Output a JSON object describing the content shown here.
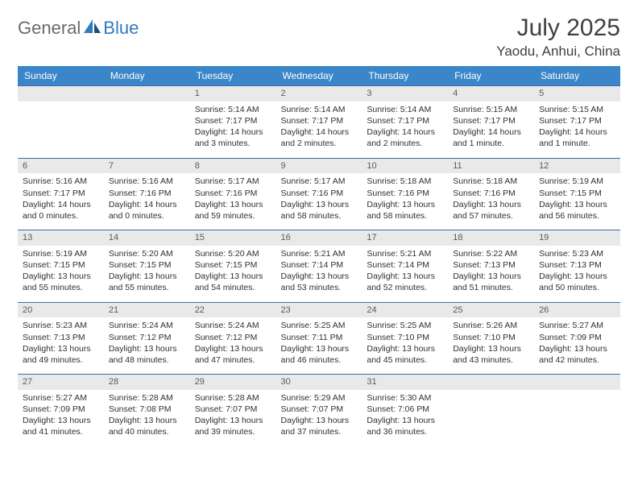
{
  "brand": {
    "part1": "General",
    "part2": "Blue"
  },
  "title": "July 2025",
  "location": "Yaodu, Anhui, China",
  "colors": {
    "header_bg": "#3a86c8",
    "header_text": "#ffffff",
    "daynum_bg": "#e9e9e9",
    "daynum_border": "#3a6fa5",
    "text": "#303030",
    "brand_gray": "#6a6a6a",
    "brand_blue": "#2f7bbf"
  },
  "weekdays": [
    "Sunday",
    "Monday",
    "Tuesday",
    "Wednesday",
    "Thursday",
    "Friday",
    "Saturday"
  ],
  "weeks": [
    [
      {
        "empty": true
      },
      {
        "empty": true
      },
      {
        "day": "1",
        "sunrise": "Sunrise: 5:14 AM",
        "sunset": "Sunset: 7:17 PM",
        "daylight": "Daylight: 14 hours and 3 minutes."
      },
      {
        "day": "2",
        "sunrise": "Sunrise: 5:14 AM",
        "sunset": "Sunset: 7:17 PM",
        "daylight": "Daylight: 14 hours and 2 minutes."
      },
      {
        "day": "3",
        "sunrise": "Sunrise: 5:14 AM",
        "sunset": "Sunset: 7:17 PM",
        "daylight": "Daylight: 14 hours and 2 minutes."
      },
      {
        "day": "4",
        "sunrise": "Sunrise: 5:15 AM",
        "sunset": "Sunset: 7:17 PM",
        "daylight": "Daylight: 14 hours and 1 minute."
      },
      {
        "day": "5",
        "sunrise": "Sunrise: 5:15 AM",
        "sunset": "Sunset: 7:17 PM",
        "daylight": "Daylight: 14 hours and 1 minute."
      }
    ],
    [
      {
        "day": "6",
        "sunrise": "Sunrise: 5:16 AM",
        "sunset": "Sunset: 7:17 PM",
        "daylight": "Daylight: 14 hours and 0 minutes."
      },
      {
        "day": "7",
        "sunrise": "Sunrise: 5:16 AM",
        "sunset": "Sunset: 7:16 PM",
        "daylight": "Daylight: 14 hours and 0 minutes."
      },
      {
        "day": "8",
        "sunrise": "Sunrise: 5:17 AM",
        "sunset": "Sunset: 7:16 PM",
        "daylight": "Daylight: 13 hours and 59 minutes."
      },
      {
        "day": "9",
        "sunrise": "Sunrise: 5:17 AM",
        "sunset": "Sunset: 7:16 PM",
        "daylight": "Daylight: 13 hours and 58 minutes."
      },
      {
        "day": "10",
        "sunrise": "Sunrise: 5:18 AM",
        "sunset": "Sunset: 7:16 PM",
        "daylight": "Daylight: 13 hours and 58 minutes."
      },
      {
        "day": "11",
        "sunrise": "Sunrise: 5:18 AM",
        "sunset": "Sunset: 7:16 PM",
        "daylight": "Daylight: 13 hours and 57 minutes."
      },
      {
        "day": "12",
        "sunrise": "Sunrise: 5:19 AM",
        "sunset": "Sunset: 7:15 PM",
        "daylight": "Daylight: 13 hours and 56 minutes."
      }
    ],
    [
      {
        "day": "13",
        "sunrise": "Sunrise: 5:19 AM",
        "sunset": "Sunset: 7:15 PM",
        "daylight": "Daylight: 13 hours and 55 minutes."
      },
      {
        "day": "14",
        "sunrise": "Sunrise: 5:20 AM",
        "sunset": "Sunset: 7:15 PM",
        "daylight": "Daylight: 13 hours and 55 minutes."
      },
      {
        "day": "15",
        "sunrise": "Sunrise: 5:20 AM",
        "sunset": "Sunset: 7:15 PM",
        "daylight": "Daylight: 13 hours and 54 minutes."
      },
      {
        "day": "16",
        "sunrise": "Sunrise: 5:21 AM",
        "sunset": "Sunset: 7:14 PM",
        "daylight": "Daylight: 13 hours and 53 minutes."
      },
      {
        "day": "17",
        "sunrise": "Sunrise: 5:21 AM",
        "sunset": "Sunset: 7:14 PM",
        "daylight": "Daylight: 13 hours and 52 minutes."
      },
      {
        "day": "18",
        "sunrise": "Sunrise: 5:22 AM",
        "sunset": "Sunset: 7:13 PM",
        "daylight": "Daylight: 13 hours and 51 minutes."
      },
      {
        "day": "19",
        "sunrise": "Sunrise: 5:23 AM",
        "sunset": "Sunset: 7:13 PM",
        "daylight": "Daylight: 13 hours and 50 minutes."
      }
    ],
    [
      {
        "day": "20",
        "sunrise": "Sunrise: 5:23 AM",
        "sunset": "Sunset: 7:13 PM",
        "daylight": "Daylight: 13 hours and 49 minutes."
      },
      {
        "day": "21",
        "sunrise": "Sunrise: 5:24 AM",
        "sunset": "Sunset: 7:12 PM",
        "daylight": "Daylight: 13 hours and 48 minutes."
      },
      {
        "day": "22",
        "sunrise": "Sunrise: 5:24 AM",
        "sunset": "Sunset: 7:12 PM",
        "daylight": "Daylight: 13 hours and 47 minutes."
      },
      {
        "day": "23",
        "sunrise": "Sunrise: 5:25 AM",
        "sunset": "Sunset: 7:11 PM",
        "daylight": "Daylight: 13 hours and 46 minutes."
      },
      {
        "day": "24",
        "sunrise": "Sunrise: 5:25 AM",
        "sunset": "Sunset: 7:10 PM",
        "daylight": "Daylight: 13 hours and 45 minutes."
      },
      {
        "day": "25",
        "sunrise": "Sunrise: 5:26 AM",
        "sunset": "Sunset: 7:10 PM",
        "daylight": "Daylight: 13 hours and 43 minutes."
      },
      {
        "day": "26",
        "sunrise": "Sunrise: 5:27 AM",
        "sunset": "Sunset: 7:09 PM",
        "daylight": "Daylight: 13 hours and 42 minutes."
      }
    ],
    [
      {
        "day": "27",
        "sunrise": "Sunrise: 5:27 AM",
        "sunset": "Sunset: 7:09 PM",
        "daylight": "Daylight: 13 hours and 41 minutes."
      },
      {
        "day": "28",
        "sunrise": "Sunrise: 5:28 AM",
        "sunset": "Sunset: 7:08 PM",
        "daylight": "Daylight: 13 hours and 40 minutes."
      },
      {
        "day": "29",
        "sunrise": "Sunrise: 5:28 AM",
        "sunset": "Sunset: 7:07 PM",
        "daylight": "Daylight: 13 hours and 39 minutes."
      },
      {
        "day": "30",
        "sunrise": "Sunrise: 5:29 AM",
        "sunset": "Sunset: 7:07 PM",
        "daylight": "Daylight: 13 hours and 37 minutes."
      },
      {
        "day": "31",
        "sunrise": "Sunrise: 5:30 AM",
        "sunset": "Sunset: 7:06 PM",
        "daylight": "Daylight: 13 hours and 36 minutes."
      },
      {
        "empty": true
      },
      {
        "empty": true
      }
    ]
  ]
}
